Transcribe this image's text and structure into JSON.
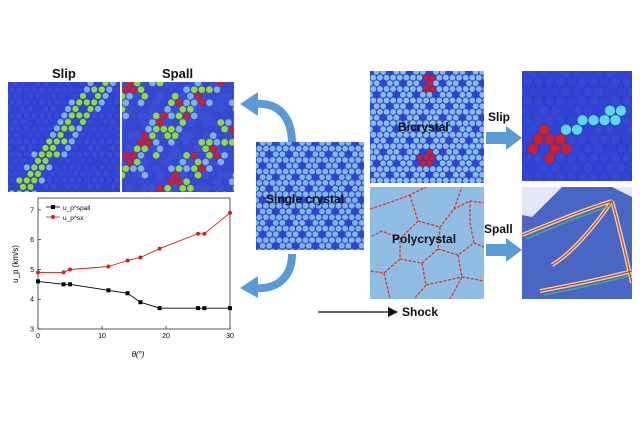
{
  "labels": {
    "slip_top": "Slip",
    "spall_top": "Spall",
    "single_crystal": "Single crystal",
    "bicrystal": "Bicrystal",
    "polycrystal": "Polycrystal",
    "slip_right": "Slip",
    "spall_right": "Spall",
    "shock": "Shock"
  },
  "chart_data": {
    "type": "line",
    "xlabel": "θ(°)",
    "ylabel": "u_p (km/s)",
    "xlim": [
      0,
      30
    ],
    "ylim": [
      3,
      7.4
    ],
    "xticks": [
      0,
      10,
      20,
      30
    ],
    "yticks": [
      3,
      4,
      5,
      6,
      7
    ],
    "legend_placement": "top-left",
    "series": [
      {
        "name": "u_p^spall",
        "color": "#000000",
        "marker": "square",
        "x": [
          0,
          4,
          5,
          11,
          14,
          16,
          19,
          25,
          26,
          30
        ],
        "y": [
          4.6,
          4.5,
          4.5,
          4.3,
          4.2,
          3.9,
          3.7,
          3.7,
          3.7,
          3.7
        ]
      },
      {
        "name": "u_p^sx",
        "color": "#d62020",
        "marker": "circle",
        "x": [
          0,
          4,
          5,
          11,
          14,
          16,
          19,
          25,
          26,
          30
        ],
        "y": [
          4.9,
          4.9,
          5.0,
          5.1,
          5.3,
          5.4,
          5.7,
          6.2,
          6.2,
          6.9
        ]
      }
    ]
  },
  "colors": {
    "atom_blue": "#2f43d6",
    "atom_light": "#7fb0e6",
    "atom_green": "#8fdc3c",
    "atom_red": "#d21d2a",
    "atom_cyan": "#5fd6e8",
    "arrow_blue": "#5b9bd5",
    "grain_bg": "#8fbde3",
    "boundary_red": "#d6392a"
  }
}
